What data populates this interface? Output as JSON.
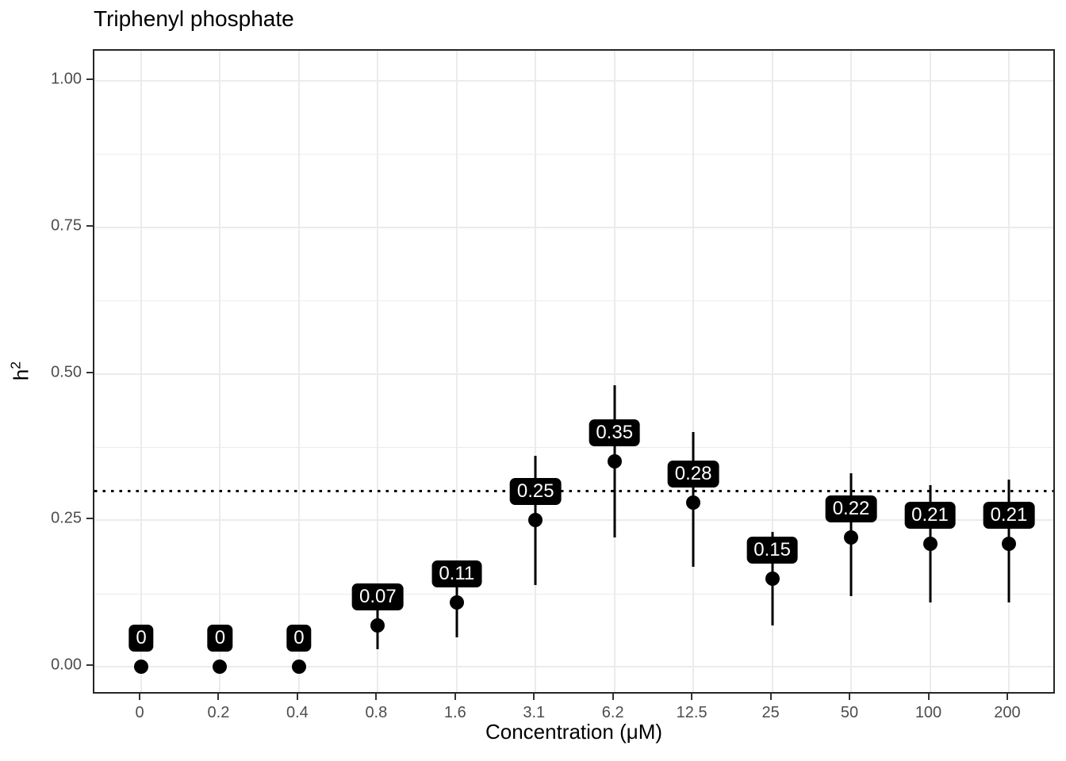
{
  "chart_data": {
    "type": "pointrange",
    "title": "Triphenyl phosphate",
    "xlabel": "Concentration (μM)",
    "ylabel_base": "h",
    "ylabel_sup": "2",
    "categories": [
      "0",
      "0.2",
      "0.4",
      "0.8",
      "1.6",
      "3.1",
      "6.2",
      "12.5",
      "25",
      "50",
      "100",
      "200"
    ],
    "series": [
      {
        "name": "h2_estimate",
        "values": [
          0,
          0,
          0,
          0.07,
          0.11,
          0.25,
          0.35,
          0.28,
          0.15,
          0.22,
          0.21,
          0.21
        ],
        "lower": [
          0,
          0,
          0,
          0.03,
          0.05,
          0.14,
          0.22,
          0.17,
          0.07,
          0.12,
          0.11,
          0.11
        ],
        "upper": [
          0,
          0,
          0,
          0.12,
          0.17,
          0.36,
          0.48,
          0.4,
          0.23,
          0.33,
          0.31,
          0.32
        ],
        "point_labels": [
          "0",
          "0",
          "0",
          "0.07",
          "0.11",
          "0.25",
          "0.35",
          "0.28",
          "0.15",
          "0.22",
          "0.21",
          "0.21"
        ]
      }
    ],
    "reference_line_y": 0.3,
    "y_axis": {
      "tick_values": [
        0,
        0.25,
        0.5,
        0.75,
        1.0
      ],
      "tick_labels": [
        "0.00",
        "0.25",
        "0.50",
        "0.75",
        "1.00"
      ],
      "range": [
        -0.049,
        1.051
      ],
      "minor_grid": true
    },
    "x_axis": {
      "grid": "major-only"
    },
    "legend": "none",
    "grid_on": true
  },
  "colors": {
    "background": "#ffffff",
    "panel_border": "#262626",
    "gridline": "#ebebeb",
    "axis_text": "#4d4d4d",
    "title_text": "#000000",
    "point": "#000000",
    "errorbar": "#000000",
    "label_fill": "#000000",
    "label_text": "#ffffff",
    "reference_line": "#000000"
  }
}
